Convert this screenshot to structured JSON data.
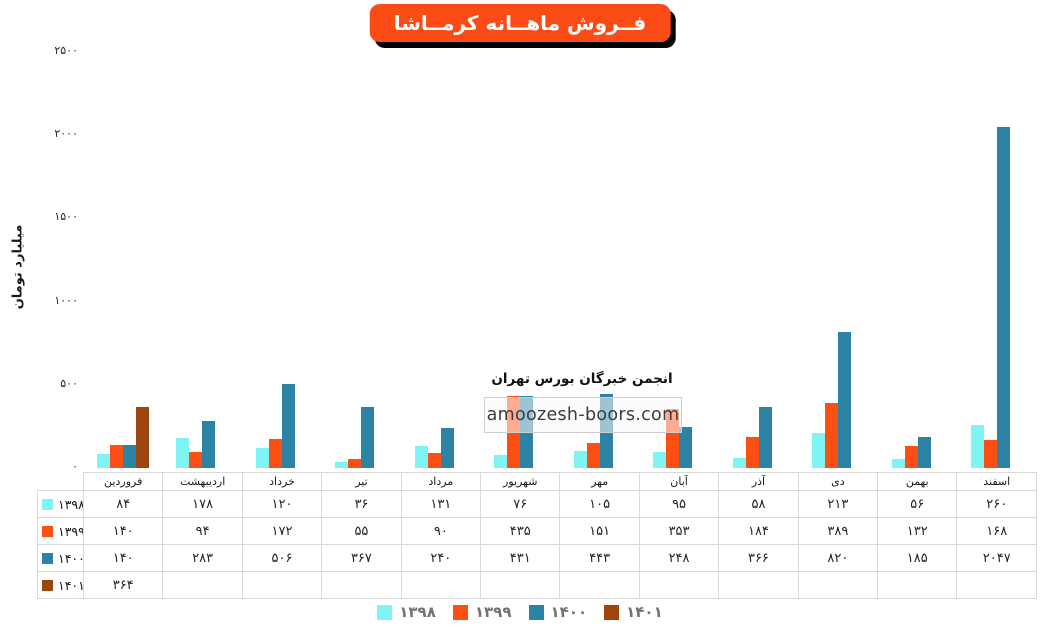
{
  "title": "فــروش ماهــانه کرمــاشا",
  "ylabel": "میلیارد تومان",
  "watermark": {
    "line1": "انجمن خبرگان بورس تهران",
    "line2": "amoozesh-boors.com"
  },
  "colors": {
    "title_bg": "#fb4b16",
    "title_shadow": "#000000",
    "series_1398": "#7ff4f4",
    "series_1399": "#fc4f13",
    "series_1400": "#2b84a4",
    "series_1401": "#9c450e",
    "table_border": "#d9d9d9",
    "legend_text": "#737373"
  },
  "chart_data": {
    "type": "bar",
    "title": "فــروش ماهــانه کرمــاشا",
    "xlabel": "",
    "ylabel": "میلیارد تومان",
    "ylim": [
      0,
      2500
    ],
    "grid": false,
    "legend_position": "bottom",
    "categories": [
      "فروردین",
      "اردیبهشت",
      "خرداد",
      "تیر",
      "مرداد",
      "شهریور",
      "مهر",
      "آبان",
      "آذر",
      "دی",
      "بهمن",
      "اسفند"
    ],
    "yticks": [
      {
        "v": 0,
        "label": "۰"
      },
      {
        "v": 500,
        "label": "۵۰۰"
      },
      {
        "v": 1000,
        "label": "۱۰۰۰"
      },
      {
        "v": 1500,
        "label": "۱۵۰۰"
      },
      {
        "v": 2000,
        "label": "۲۰۰۰"
      },
      {
        "v": 2500,
        "label": "۲۵۰۰"
      }
    ],
    "series": [
      {
        "name": "۱۳۹۸",
        "color": "#7ff4f4",
        "values": [
          84,
          178,
          120,
          36,
          131,
          76,
          105,
          95,
          58,
          213,
          56,
          260
        ],
        "labels": [
          "۸۴",
          "۱۷۸",
          "۱۲۰",
          "۳۶",
          "۱۳۱",
          "۷۶",
          "۱۰۵",
          "۹۵",
          "۵۸",
          "۲۱۳",
          "۵۶",
          "۲۶۰"
        ]
      },
      {
        "name": "۱۳۹۹",
        "color": "#fc4f13",
        "values": [
          140,
          94,
          172,
          55,
          90,
          435,
          151,
          353,
          184,
          389,
          132,
          168
        ],
        "labels": [
          "۱۴۰",
          "۹۴",
          "۱۷۲",
          "۵۵",
          "۹۰",
          "۴۳۵",
          "۱۵۱",
          "۳۵۳",
          "۱۸۴",
          "۳۸۹",
          "۱۳۲",
          "۱۶۸"
        ]
      },
      {
        "name": "۱۴۰۰",
        "color": "#2b84a4",
        "values": [
          140,
          283,
          506,
          367,
          240,
          431,
          443,
          248,
          366,
          820,
          185,
          2047
        ],
        "labels": [
          "۱۴۰",
          "۲۸۳",
          "۵۰۶",
          "۳۶۷",
          "۲۴۰",
          "۴۳۱",
          "۴۴۳",
          "۲۴۸",
          "۳۶۶",
          "۸۲۰",
          "۱۸۵",
          "۲۰۴۷"
        ]
      },
      {
        "name": "۱۴۰۱",
        "color": "#9c450e",
        "values": [
          364,
          null,
          null,
          null,
          null,
          null,
          null,
          null,
          null,
          null,
          null,
          null
        ],
        "labels": [
          "۳۶۴",
          "",
          "",
          "",
          "",
          "",
          "",
          "",
          "",
          "",
          "",
          ""
        ]
      }
    ]
  }
}
